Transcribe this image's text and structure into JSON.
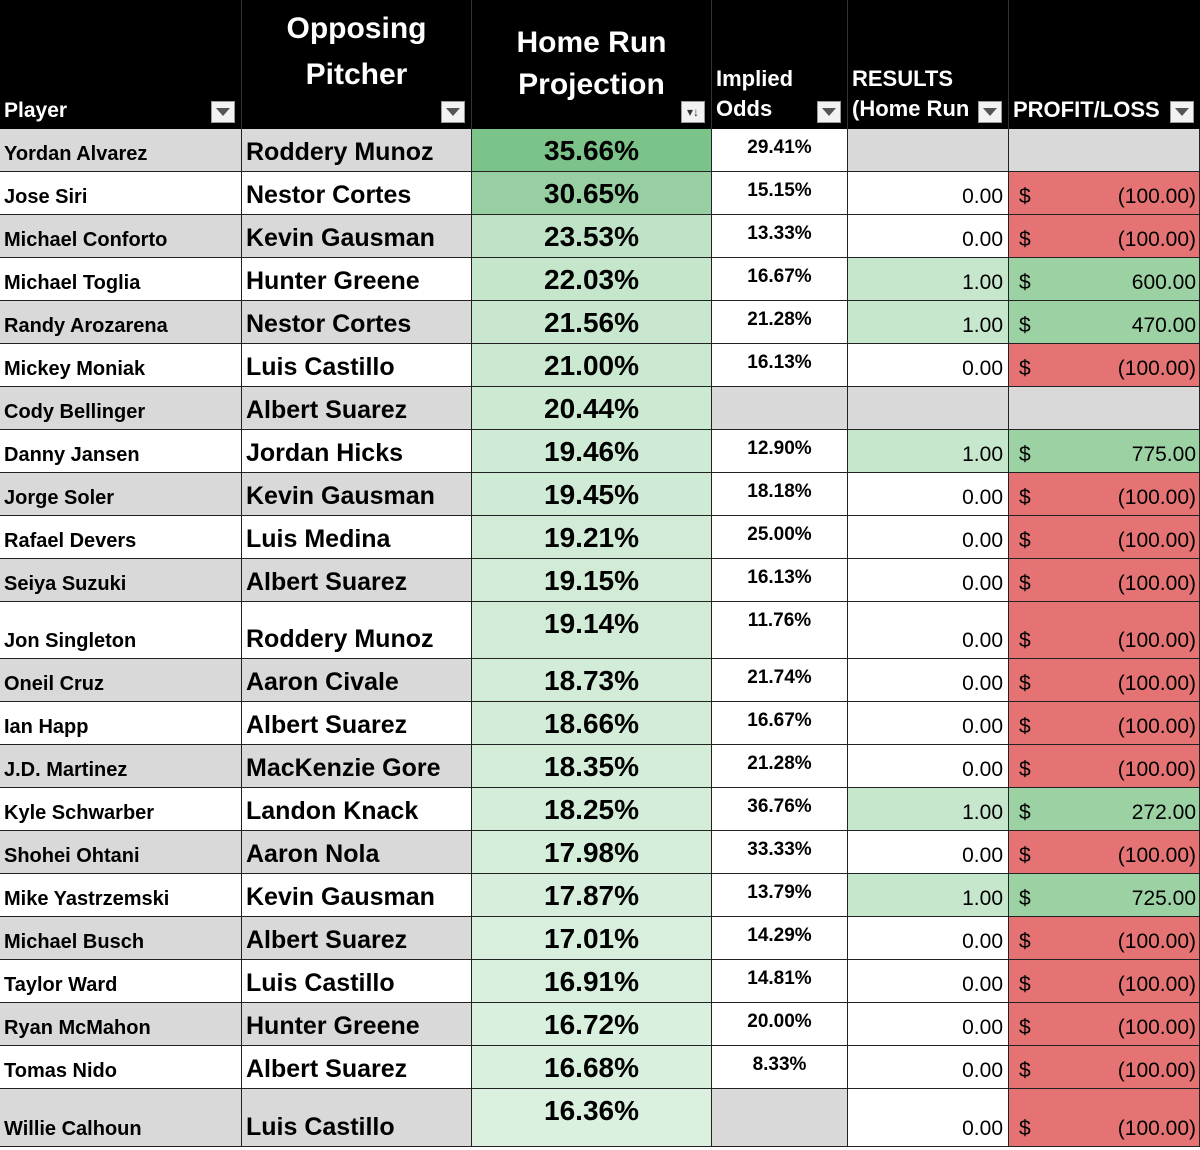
{
  "headers": {
    "player": "Player",
    "pitcher": [
      "Opposing",
      "Pitcher"
    ],
    "projection": [
      "Home Run",
      "Projection"
    ],
    "odds": [
      "Implied",
      "Odds"
    ],
    "results": [
      "RESULTS",
      "(Home Run"
    ],
    "profit": "PROFIT/LOSS"
  },
  "colors": {
    "header_bg": "#000000",
    "profit_green": "#9bd1a3",
    "loss_red": "#e57373",
    "result_green": "#c6e7cc",
    "row_grey": "#d9d9d9"
  },
  "rows": [
    {
      "player": "Yordan Alvarez",
      "pitcher": "Roddery Munoz",
      "projection": "35.66%",
      "odds": "29.41%",
      "result": "",
      "dollar": "",
      "amount": "",
      "status": "blank",
      "projection_color": "#7cc38a"
    },
    {
      "player": "Jose Siri",
      "pitcher": "Nestor Cortes",
      "projection": "30.65%",
      "odds": "15.15%",
      "result": "0.00",
      "dollar": "$",
      "amount": "(100.00)",
      "status": "loss",
      "projection_color": "#97cfa2"
    },
    {
      "player": "Michael Conforto",
      "pitcher": "Kevin Gausman",
      "projection": "23.53%",
      "odds": "13.33%",
      "result": "0.00",
      "dollar": "$",
      "amount": "(100.00)",
      "status": "loss",
      "projection_color": "#c0e3c7"
    },
    {
      "player": "Michael Toglia",
      "pitcher": "Hunter Greene",
      "projection": "22.03%",
      "odds": "16.67%",
      "result": "1.00",
      "dollar": "$",
      "amount": "600.00",
      "status": "win",
      "projection_color": "#c6e6cc"
    },
    {
      "player": "Randy Arozarena",
      "pitcher": "Nestor Cortes",
      "projection": "21.56%",
      "odds": "21.28%",
      "result": "1.00",
      "dollar": "$",
      "amount": "470.00",
      "status": "win",
      "projection_color": "#c8e7ce"
    },
    {
      "player": "Mickey Moniak",
      "pitcher": "Luis Castillo",
      "projection": "21.00%",
      "odds": "16.13%",
      "result": "0.00",
      "dollar": "$",
      "amount": "(100.00)",
      "status": "loss",
      "projection_color": "#cae8d0"
    },
    {
      "player": "Cody Bellinger",
      "pitcher": "Albert Suarez",
      "projection": "20.44%",
      "odds": "",
      "result": "",
      "dollar": "",
      "amount": "",
      "status": "blank",
      "projection_color": "#cce9d2"
    },
    {
      "player": "Danny Jansen",
      "pitcher": "Jordan Hicks",
      "projection": "19.46%",
      "odds": "12.90%",
      "result": "1.00",
      "dollar": "$",
      "amount": "775.00",
      "status": "win",
      "projection_color": "#d0ebd5"
    },
    {
      "player": "Jorge Soler",
      "pitcher": "Kevin Gausman",
      "projection": "19.45%",
      "odds": "18.18%",
      "result": "0.00",
      "dollar": "$",
      "amount": "(100.00)",
      "status": "loss",
      "projection_color": "#d0ebd5"
    },
    {
      "player": "Rafael Devers",
      "pitcher": "Luis Medina",
      "projection": "19.21%",
      "odds": "25.00%",
      "result": "0.00",
      "dollar": "$",
      "amount": "(100.00)",
      "status": "loss",
      "projection_color": "#d1ebd6"
    },
    {
      "player": "Seiya Suzuki",
      "pitcher": "Albert Suarez",
      "projection": "19.15%",
      "odds": "16.13%",
      "result": "0.00",
      "dollar": "$",
      "amount": "(100.00)",
      "status": "loss",
      "projection_color": "#d1ebd6"
    },
    {
      "player": "Jon Singleton",
      "pitcher": "Roddery Munoz",
      "projection": "19.14%",
      "odds": "11.76%",
      "result": "0.00",
      "dollar": "$",
      "amount": "(100.00)",
      "status": "loss",
      "projection_color": "#d1ebd6"
    },
    {
      "player": "Oneil Cruz",
      "pitcher": "Aaron Civale",
      "projection": "18.73%",
      "odds": "21.74%",
      "result": "0.00",
      "dollar": "$",
      "amount": "(100.00)",
      "status": "loss",
      "projection_color": "#d3ecd8"
    },
    {
      "player": "Ian Happ",
      "pitcher": "Albert Suarez",
      "projection": "18.66%",
      "odds": "16.67%",
      "result": "0.00",
      "dollar": "$",
      "amount": "(100.00)",
      "status": "loss",
      "projection_color": "#d3ecd8"
    },
    {
      "player": "J.D. Martinez",
      "pitcher": "MacKenzie Gore",
      "projection": "18.35%",
      "odds": "21.28%",
      "result": "0.00",
      "dollar": "$",
      "amount": "(100.00)",
      "status": "loss",
      "projection_color": "#d4edd9"
    },
    {
      "player": "Kyle Schwarber",
      "pitcher": "Landon Knack",
      "projection": "18.25%",
      "odds": "36.76%",
      "result": "1.00",
      "dollar": "$",
      "amount": "272.00",
      "status": "win",
      "projection_color": "#d4edd9"
    },
    {
      "player": "Shohei Ohtani",
      "pitcher": "Aaron Nola",
      "projection": "17.98%",
      "odds": "33.33%",
      "result": "0.00",
      "dollar": "$",
      "amount": "(100.00)",
      "status": "loss",
      "projection_color": "#d5eeda"
    },
    {
      "player": "Mike Yastrzemski",
      "pitcher": "Kevin Gausman",
      "projection": "17.87%",
      "odds": "13.79%",
      "result": "1.00",
      "dollar": "$",
      "amount": "725.00",
      "status": "win",
      "projection_color": "#d6eedb"
    },
    {
      "player": "Michael Busch",
      "pitcher": "Albert Suarez",
      "projection": "17.01%",
      "odds": "14.29%",
      "result": "0.00",
      "dollar": "$",
      "amount": "(100.00)",
      "status": "loss",
      "projection_color": "#d9efdd"
    },
    {
      "player": "Taylor Ward",
      "pitcher": "Luis Castillo",
      "projection": "16.91%",
      "odds": "14.81%",
      "result": "0.00",
      "dollar": "$",
      "amount": "(100.00)",
      "status": "loss",
      "projection_color": "#d9efdd"
    },
    {
      "player": "Ryan McMahon",
      "pitcher": "Hunter Greene",
      "projection": "16.72%",
      "odds": "20.00%",
      "result": "0.00",
      "dollar": "$",
      "amount": "(100.00)",
      "status": "loss",
      "projection_color": "#daf0de"
    },
    {
      "player": "Tomas Nido",
      "pitcher": "Albert Suarez",
      "projection": "16.68%",
      "odds": "8.33%",
      "result": "0.00",
      "dollar": "$",
      "amount": "(100.00)",
      "status": "loss",
      "projection_color": "#daf0de"
    },
    {
      "player": "Willie Calhoun",
      "pitcher": "Luis Castillo",
      "projection": "16.36%",
      "odds": "",
      "result": "0.00",
      "dollar": "$",
      "amount": "(100.00)",
      "status": "loss",
      "projection_color": "#dbf0df"
    }
  ]
}
